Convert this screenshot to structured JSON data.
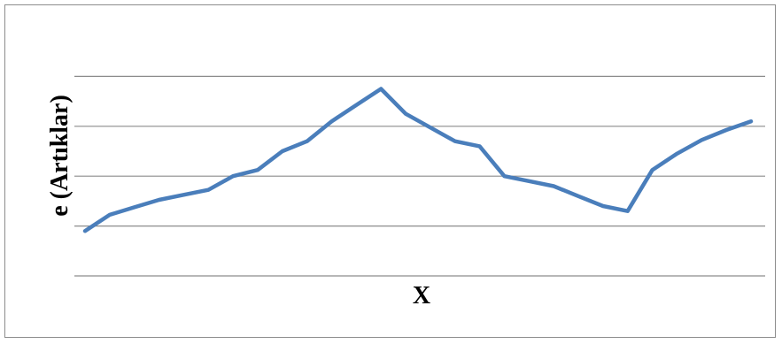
{
  "chart_data": {
    "type": "line",
    "title": "",
    "xlabel": "X",
    "ylabel": "e (Artıklar)",
    "grid": true,
    "legend": "none",
    "ylim": [
      -4,
      6
    ],
    "gridlines_y": [
      -4,
      -2,
      0,
      2,
      4,
      6
    ],
    "series": [
      {
        "name": "",
        "color": "#4a7ebb",
        "x": [
          1,
          2,
          3,
          4,
          5,
          6,
          7,
          8,
          9,
          10,
          11,
          12,
          13,
          14,
          15,
          16,
          17,
          18,
          19,
          20,
          21,
          22,
          23,
          24,
          25,
          26,
          27,
          28
        ],
        "values": [
          -2.2,
          -1.55,
          -1.25,
          -0.95,
          -0.75,
          -0.55,
          0,
          0.25,
          1,
          1.4,
          2.2,
          2.85,
          3.5,
          2.5,
          1.95,
          1.4,
          1.2,
          0,
          -0.2,
          -0.4,
          -0.8,
          -1.2,
          -1.4,
          0.25,
          0.9,
          1.45,
          1.85,
          2.2
        ]
      }
    ]
  }
}
